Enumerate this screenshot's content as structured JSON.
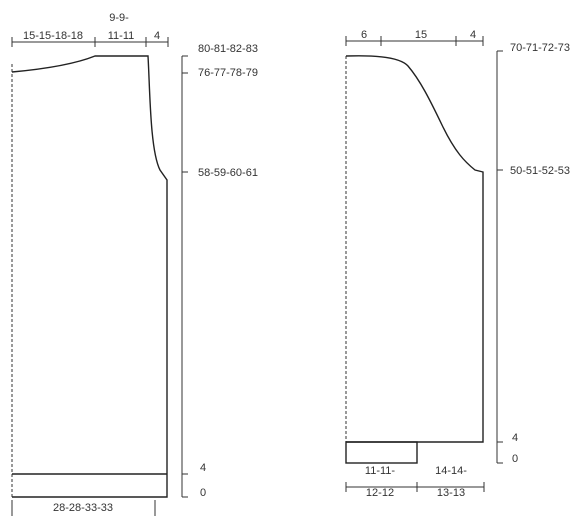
{
  "left_piece": {
    "top_widths": {
      "seg1": "15-15-18-18",
      "seg2_line1": "9-9-",
      "seg2_line2": "11-11",
      "seg3": "4"
    },
    "bottom_width": "28-28-33-33",
    "heights": {
      "total": "80-81-82-83",
      "neck": "76-77-78-79",
      "armhole": "58-59-60-61",
      "rib": "4",
      "base": "0"
    }
  },
  "right_piece": {
    "top_widths": {
      "seg1": "6",
      "seg2": "15",
      "seg3": "4"
    },
    "bottom_widths": {
      "seg1_line1": "11-11-",
      "seg1_line2": "12-12",
      "seg2_line1": "14-14-",
      "seg2_line2": "13-13"
    },
    "heights": {
      "total": "70-71-72-73",
      "armhole": "50-51-52-53",
      "rib": "4",
      "base": "0"
    }
  }
}
